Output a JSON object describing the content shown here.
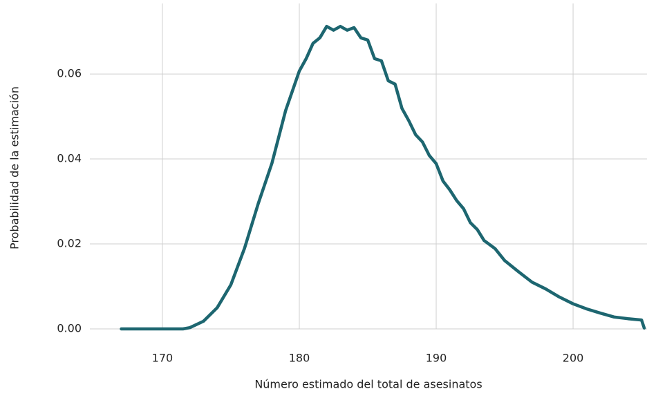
{
  "chart_data": {
    "type": "line",
    "x_label": "Número estimado del total de asesinatos",
    "y_label": "Probabilidad de la estimación",
    "xlim": [
      164.7,
      205.4
    ],
    "ylim": [
      0,
      0.0766
    ],
    "xticks": [
      170,
      180,
      190,
      200
    ],
    "yticks": [
      {
        "value": 0,
        "label": "0.00"
      },
      0.02,
      0.04,
      0.06
    ],
    "grid": true,
    "series": [
      {
        "color": "#1d6670",
        "x": [
          167,
          168,
          169,
          170,
          171,
          171.5,
          172,
          173,
          174,
          175,
          176,
          177,
          178,
          179,
          180,
          180.5,
          181,
          181.5,
          182,
          182.5,
          183,
          183.5,
          184,
          184.5,
          185,
          185.5,
          186,
          186.5,
          187,
          187.5,
          188,
          188.5,
          189,
          189.5,
          190,
          190.5,
          191,
          191.5,
          192,
          192.5,
          193,
          193.5,
          194.3,
          195,
          196,
          197,
          198,
          199,
          200,
          201,
          202,
          203,
          204,
          205,
          205.2
        ],
        "values": [
          0,
          0,
          0,
          0,
          0,
          0,
          0.0003,
          0.0018,
          0.005,
          0.0104,
          0.019,
          0.0295,
          0.039,
          0.0514,
          0.0607,
          0.0636,
          0.0672,
          0.0685,
          0.0712,
          0.0703,
          0.0712,
          0.0703,
          0.0709,
          0.0685,
          0.068,
          0.0636,
          0.0631,
          0.0584,
          0.0576,
          0.0519,
          0.049,
          0.0457,
          0.044,
          0.0408,
          0.0389,
          0.0348,
          0.0327,
          0.0302,
          0.0283,
          0.025,
          0.0234,
          0.0208,
          0.0189,
          0.0161,
          0.0135,
          0.011,
          0.0094,
          0.0075,
          0.0059,
          0.0047,
          0.0037,
          0.0028,
          0.0024,
          0.0021,
          0.0002
        ]
      }
    ]
  }
}
